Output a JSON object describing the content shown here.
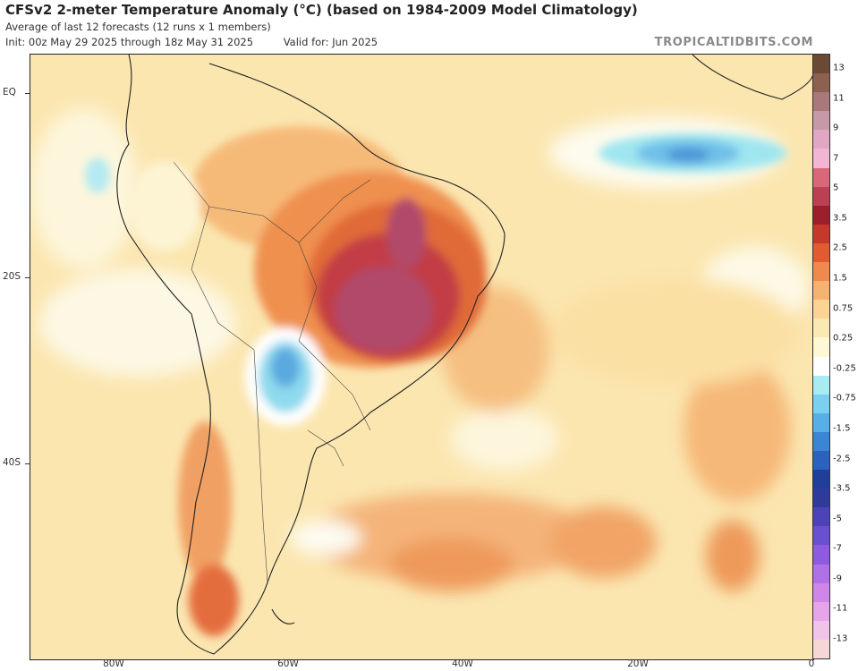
{
  "header": {
    "title": "CFSv2 2-meter Temperature Anomaly (°C) (based on 1984-2009 Model Climatology)",
    "subtitle": "Average of last 12 forecasts (12 runs x 1 members)",
    "init": "Init: 00z May 29 2025 through 18z May 31 2025",
    "valid": "Valid for: Jun 2025",
    "credit": "TROPICALTIDBITS.COM"
  },
  "map": {
    "lat_labels": [
      "EQ",
      "20S",
      "40S"
    ],
    "lon_labels": [
      "80W",
      "60W",
      "40W",
      "20W",
      "0"
    ]
  },
  "colorbar": {
    "labels": [
      "13",
      "11",
      "9",
      "7",
      "5",
      "3.5",
      "2.5",
      "1.5",
      "0.75",
      "0.25",
      "-0.25",
      "-0.75",
      "-1.5",
      "-2.5",
      "-3.5",
      "-5",
      "-7",
      "-9",
      "-11",
      "-13"
    ],
    "colors": [
      "#6b4a35",
      "#8c6150",
      "#a8787a",
      "#c698a8",
      "#e1a6c3",
      "#f2b6d4",
      "#d9677a",
      "#bb4052",
      "#9c1f2b",
      "#c7382c",
      "#e25b30",
      "#ef8a4c",
      "#f6b270",
      "#fbd394",
      "#fbe9b4",
      "#fdf8d6",
      "#ffffff",
      "#a8ecf2",
      "#7ad0ee",
      "#56b0e6",
      "#3a85d6",
      "#2b62c0",
      "#1f3f9a",
      "#2e3b9a",
      "#4c43b8",
      "#6a4fd0",
      "#8e5be0",
      "#b070e6",
      "#cf86e6",
      "#e6a4ea",
      "#f0c4e8",
      "#f7d6d8"
    ]
  }
}
